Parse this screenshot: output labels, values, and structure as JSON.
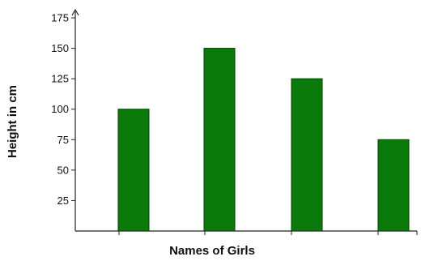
{
  "chart_data": {
    "type": "bar",
    "title": "",
    "xlabel": "Names of Girls",
    "ylabel": "Height in cm",
    "ylim": [
      0,
      175
    ],
    "yticks": [
      25,
      50,
      75,
      100,
      125,
      150,
      175
    ],
    "categories": [
      "",
      "",
      "",
      ""
    ],
    "values": [
      100,
      150,
      125,
      75
    ],
    "bar_color": "#0a7a0a",
    "bar_edge_color": "#063f06",
    "grid": false,
    "legend": "none"
  }
}
